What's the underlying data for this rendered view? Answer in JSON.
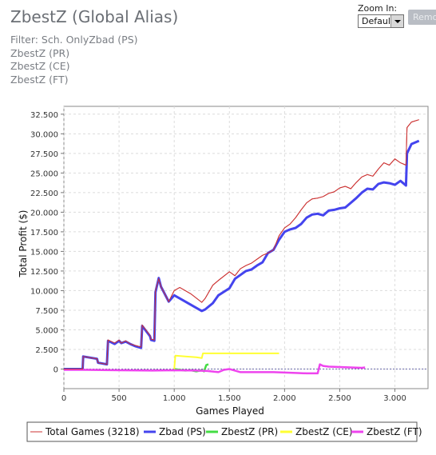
{
  "header": {
    "title": "ZbestZ (Global Alias)",
    "filters": [
      "Filter: Sch. OnlyZbad (PS)",
      "ZbestZ (PR)",
      "ZbestZ (CE)",
      "ZbestZ (FT)"
    ]
  },
  "zoom": {
    "label": "Zoom In:",
    "value": "Default"
  },
  "remove_button": "Remo",
  "chart_data": {
    "type": "line",
    "xlabel": "Games Played",
    "ylabel": "Total Profit ($)",
    "xlim": [
      0,
      3300
    ],
    "ylim": [
      -2500,
      33500
    ],
    "xticks": [
      0,
      500,
      1000,
      1500,
      2000,
      2500,
      3000
    ],
    "xtick_labels": [
      "0",
      "500",
      "1.000",
      "1.500",
      "2.000",
      "2.500",
      "3.000"
    ],
    "yticks": [
      0,
      2500,
      5000,
      7500,
      10000,
      12500,
      15000,
      17500,
      20000,
      22500,
      25000,
      27500,
      30000,
      32500
    ],
    "ytick_labels": [
      "0",
      "2.500",
      "5.000",
      "7.500",
      "10.000",
      "12.500",
      "15.000",
      "17.500",
      "20.000",
      "22.500",
      "25.000",
      "27.500",
      "30.000",
      "32.500"
    ],
    "grid": true,
    "legend_position": "bottom",
    "series": [
      {
        "name": "Total Games (3218)",
        "color": "#cc3333",
        "width": 1,
        "x": [
          0,
          170,
          175,
          300,
          310,
          390,
          400,
          460,
          500,
          520,
          560,
          600,
          650,
          700,
          710,
          780,
          790,
          820,
          830,
          860,
          880,
          950,
          1000,
          1050,
          1150,
          1250,
          1280,
          1350,
          1400,
          1500,
          1550,
          1600,
          1650,
          1700,
          1750,
          1800,
          1850,
          1900,
          1950,
          2000,
          2050,
          2100,
          2150,
          2200,
          2250,
          2300,
          2350,
          2400,
          2450,
          2500,
          2550,
          2600,
          2650,
          2700,
          2750,
          2800,
          2850,
          2900,
          2950,
          3000,
          3050,
          3100,
          3110,
          3150,
          3218
        ],
        "y": [
          0,
          0,
          1600,
          1300,
          800,
          600,
          3700,
          3300,
          3700,
          3300,
          3600,
          3200,
          3000,
          2800,
          5600,
          4300,
          3800,
          3700,
          10000,
          11500,
          10500,
          8600,
          10000,
          10400,
          9600,
          8500,
          9000,
          10700,
          11300,
          12400,
          11900,
          12800,
          13200,
          13500,
          14000,
          14500,
          14800,
          15200,
          17000,
          18000,
          18500,
          19300,
          20300,
          21200,
          21700,
          21800,
          22000,
          22400,
          22600,
          23100,
          23300,
          23000,
          23800,
          24500,
          24800,
          24600,
          25500,
          26300,
          26000,
          26800,
          26300,
          26000,
          30800,
          31500,
          31800
        ]
      },
      {
        "name": "Zbad (PS)",
        "color": "#4444ee",
        "width": 3,
        "x": [
          0,
          170,
          175,
          300,
          310,
          390,
          400,
          460,
          500,
          520,
          560,
          600,
          650,
          700,
          710,
          780,
          790,
          820,
          830,
          860,
          880,
          950,
          1000,
          1050,
          1150,
          1250,
          1280,
          1350,
          1400,
          1500,
          1550,
          1600,
          1650,
          1700,
          1750,
          1800,
          1850,
          1900,
          1950,
          2000,
          2050,
          2100,
          2150,
          2200,
          2250,
          2300,
          2350,
          2400,
          2450,
          2500,
          2550,
          2600,
          2650,
          2700,
          2750,
          2800,
          2850,
          2900,
          2950,
          3000,
          3050,
          3100,
          3110,
          3150,
          3218
        ],
        "y": [
          0,
          0,
          1600,
          1300,
          800,
          600,
          3600,
          3200,
          3600,
          3300,
          3500,
          3200,
          2900,
          2700,
          5500,
          4200,
          3700,
          3600,
          9800,
          11600,
          10500,
          8600,
          9400,
          9000,
          8200,
          7400,
          7600,
          8400,
          9400,
          10300,
          11500,
          12000,
          12500,
          12700,
          13200,
          13600,
          14800,
          15200,
          16500,
          17500,
          17800,
          18000,
          18500,
          19300,
          19700,
          19800,
          19600,
          20200,
          20300,
          20500,
          20600,
          21200,
          21800,
          22500,
          23000,
          22900,
          23600,
          23800,
          23700,
          23500,
          24000,
          23400,
          27500,
          28700,
          29100
        ]
      },
      {
        "name": "ZbestZ (PR)",
        "color": "#44dd44",
        "width": 2.5,
        "x": [
          1000,
          1050,
          1100,
          1150,
          1200,
          1250,
          1270,
          1290,
          1310
        ],
        "y": [
          0,
          -100,
          -200,
          -150,
          -300,
          -150,
          -300,
          500,
          600
        ]
      },
      {
        "name": "ZbestZ (CE)",
        "color": "#ffff33",
        "width": 2,
        "x": [
          1000,
          1010,
          1100,
          1200,
          1250,
          1260,
          1300,
          1500,
          1800,
          1950
        ],
        "y": [
          0,
          1700,
          1600,
          1500,
          1400,
          2000,
          2000,
          2000,
          2000,
          2000
        ]
      },
      {
        "name": "ZbestZ (FT)",
        "color": "#ee44ee",
        "width": 2.5,
        "x": [
          0,
          200,
          500,
          800,
          1000,
          1200,
          1300,
          1400,
          1450,
          1500,
          1550,
          1600,
          1700,
          1800,
          1900,
          2000,
          2100,
          2200,
          2300,
          2320,
          2350,
          2400,
          2500,
          2600,
          2700,
          2730
        ],
        "y": [
          -100,
          -100,
          -150,
          -200,
          -150,
          -200,
          -250,
          -400,
          -100,
          0,
          -200,
          -400,
          -400,
          -400,
          -400,
          -450,
          -500,
          -550,
          -550,
          600,
          400,
          300,
          250,
          200,
          150,
          200
        ]
      }
    ]
  }
}
